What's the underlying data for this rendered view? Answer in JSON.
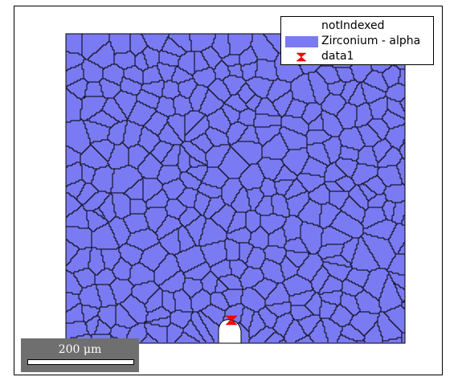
{
  "figure": {
    "map_color": "#7a7af2",
    "boundary_color": "#000000",
    "not_indexed_color": "#ffffff",
    "marker_color": "#ff0000"
  },
  "legend": {
    "items": [
      {
        "label": "notIndexed",
        "color": "#ffffff",
        "kind": "patch"
      },
      {
        "label": "Zirconium - alpha",
        "color": "#7a7af2",
        "kind": "patch"
      },
      {
        "label": "data1",
        "color": "#ff0000",
        "kind": "marker"
      }
    ]
  },
  "scalebar": {
    "label": "200 μm"
  }
}
